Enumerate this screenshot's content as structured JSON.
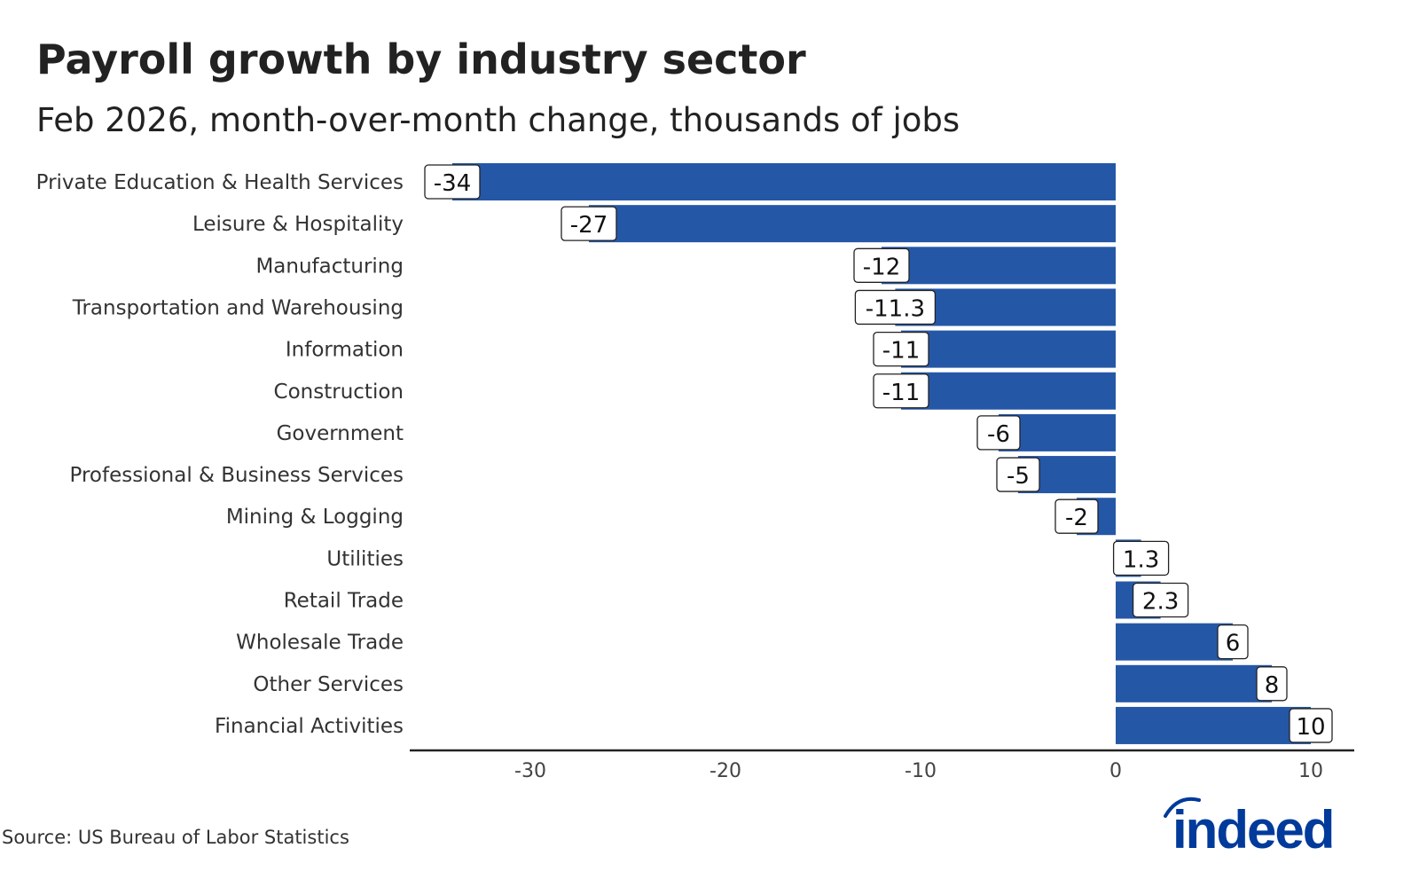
{
  "title": "Payroll growth by industry sector",
  "subtitle": "Feb 2026, month-over-month change, thousands of jobs",
  "source": "Source: US Bureau of Labor Statistics",
  "logo_text": "indeed",
  "colors": {
    "bar": "#2557a7",
    "logo": "#003a9b"
  },
  "chart_data": {
    "type": "bar",
    "orientation": "horizontal",
    "categories": [
      "Private Education & Health Services",
      "Leisure & Hospitality",
      "Manufacturing",
      "Transportation and Warehousing",
      "Information",
      "Construction",
      "Government",
      "Professional & Business Services",
      "Mining & Logging",
      "Utilities",
      "Retail Trade",
      "Wholesale Trade",
      "Other Services",
      "Financial Activities"
    ],
    "values": [
      -34,
      -27,
      -12,
      -11.3,
      -11,
      -11,
      -6,
      -5,
      -2,
      1.3,
      2.3,
      6,
      8,
      10
    ],
    "data_labels": [
      "-34",
      "-27",
      "-12",
      "-11.3",
      "-11",
      "-11",
      "-6",
      "-5",
      "-2",
      "1.3",
      "2.3",
      "6",
      "8",
      "10"
    ],
    "xticks": [
      -30,
      -20,
      -10,
      0,
      10
    ],
    "xtick_labels": [
      "-30",
      "-20",
      "-10",
      "0",
      "10"
    ],
    "xlim": [
      -36.2,
      12
    ],
    "grid": false,
    "legend": "none"
  }
}
